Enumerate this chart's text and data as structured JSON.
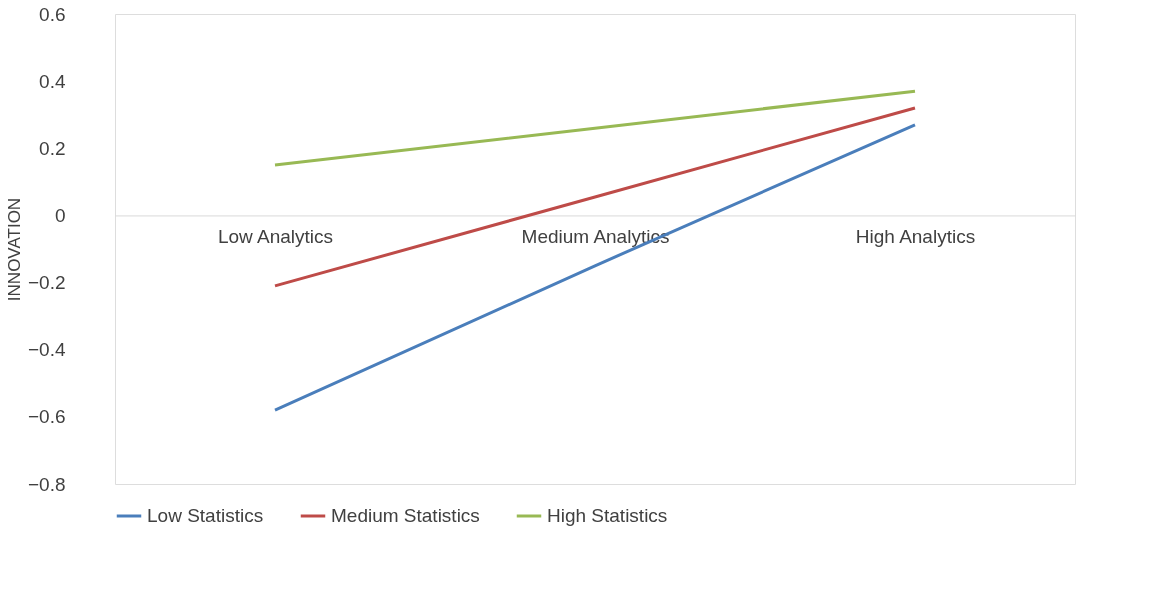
{
  "chart_data": {
    "type": "line",
    "ylabel": "INNOVATION",
    "categories": [
      "Low  Analytics",
      "Medium Analytics",
      "High Analytics"
    ],
    "series": [
      {
        "name": "Low Statistics",
        "color": "#4a7ebb",
        "values": [
          -0.58,
          -0.15,
          0.27
        ]
      },
      {
        "name": "Medium Statistics",
        "color": "#be4b48",
        "values": [
          -0.21,
          0.055,
          0.32
        ]
      },
      {
        "name": "High Statistics",
        "color": "#98b954",
        "values": [
          0.15,
          0.26,
          0.37
        ]
      }
    ],
    "ylim": [
      -0.8,
      0.6
    ],
    "yticks": [
      -0.8,
      -0.6,
      -0.4,
      -0.2,
      0,
      0.2,
      0.4,
      0.6
    ],
    "grid": false,
    "legend": "bottom",
    "marker": "none",
    "line_style": "solid"
  }
}
